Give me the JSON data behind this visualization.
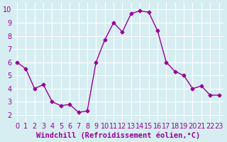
{
  "x": [
    0,
    1,
    2,
    3,
    4,
    5,
    6,
    7,
    8,
    9,
    10,
    11,
    12,
    13,
    14,
    15,
    16,
    17,
    18,
    19,
    20,
    21,
    22,
    23
  ],
  "y": [
    6.0,
    5.5,
    4.0,
    4.3,
    3.0,
    2.7,
    2.8,
    2.2,
    2.3,
    6.0,
    7.7,
    9.0,
    8.3,
    9.7,
    9.9,
    9.8,
    8.4,
    6.0,
    5.3,
    5.0,
    4.0,
    4.2,
    3.5,
    3.5
  ],
  "line_color": "#990099",
  "marker_color": "#990099",
  "bg_color": "#d6eef2",
  "grid_color": "#ffffff",
  "xlabel": "Windchill (Refroidissement éolien,°C)",
  "xlabel_color": "#990099",
  "xlim": [
    -0.5,
    23.5
  ],
  "ylim": [
    1.5,
    10.5
  ],
  "yticks": [
    2,
    3,
    4,
    5,
    6,
    7,
    8,
    9,
    10
  ],
  "xticks": [
    0,
    1,
    2,
    3,
    4,
    5,
    6,
    7,
    8,
    9,
    10,
    11,
    12,
    13,
    14,
    15,
    16,
    17,
    18,
    19,
    20,
    21,
    22,
    23
  ],
  "tick_label_color": "#990099",
  "tick_label_fontsize": 7,
  "xlabel_fontsize": 7.5
}
